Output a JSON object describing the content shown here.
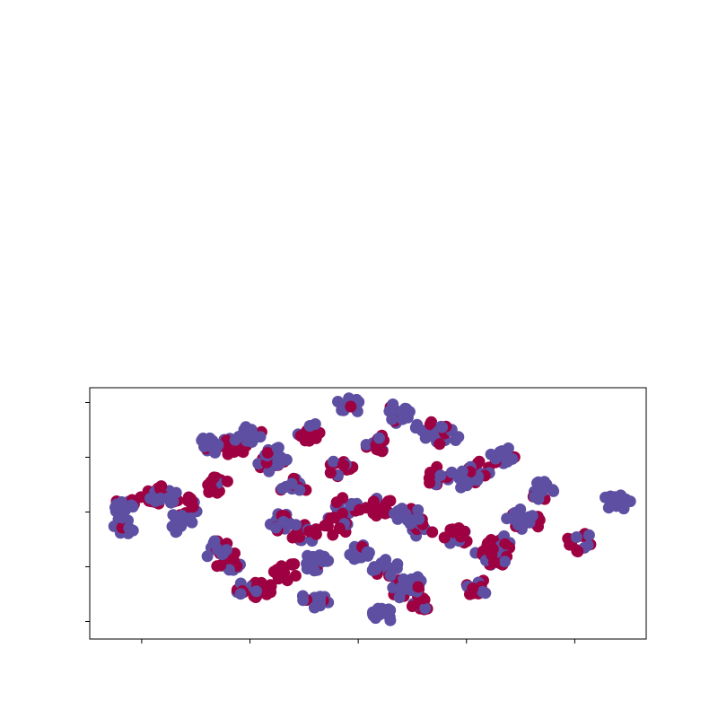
{
  "chart_data": {
    "type": "scatter",
    "title": "",
    "xlabel": "",
    "ylabel": "",
    "xlim": [
      -1.48,
      3.66
    ],
    "ylim": [
      -0.32,
      4.27
    ],
    "xticks": [
      -1,
      0,
      1,
      2,
      3
    ],
    "yticks": [
      0,
      1,
      2,
      3,
      4
    ],
    "grid": false,
    "legend": "none",
    "colors": {
      "class_a": "#9e0142",
      "class_b": "#5e4fa2"
    },
    "series": [
      {
        "values": [
          [
            -0.9,
            2.3
          ],
          [
            -0.6,
            2.1
          ],
          [
            -0.3,
            2.5
          ],
          [
            -0.15,
            3.2
          ],
          [
            0.2,
            2.9
          ],
          [
            0.5,
            1.6
          ],
          [
            0.85,
            2.8
          ],
          [
            1.2,
            2.1
          ],
          [
            1.4,
            0.6
          ],
          [
            1.6,
            1.7
          ],
          [
            2.1,
            2.75
          ],
          [
            2.3,
            1.4
          ],
          [
            2.6,
            1.8
          ],
          [
            3.05,
            1.45
          ],
          [
            0.55,
            3.45
          ],
          [
            1.15,
            3.25
          ],
          [
            -0.2,
            1.1
          ],
          [
            0.35,
            0.9
          ],
          [
            1.55,
            0.35
          ],
          [
            2.25,
            1.15
          ],
          [
            0.8,
            1.75
          ],
          [
            1.75,
            2.65
          ],
          [
            0.1,
            0.55
          ],
          [
            1.9,
            1.55
          ]
        ]
      },
      {
        "values": [
          [
            -1.15,
            2.1
          ],
          [
            -1.15,
            1.75
          ],
          [
            -0.65,
            1.8
          ],
          [
            -0.4,
            3.2
          ],
          [
            0.0,
            3.4
          ],
          [
            0.3,
            1.8
          ],
          [
            0.6,
            1.1
          ],
          [
            0.9,
            3.95
          ],
          [
            0.9,
            2.1
          ],
          [
            1.0,
            1.3
          ],
          [
            1.35,
            3.8
          ],
          [
            1.45,
            1.95
          ],
          [
            1.65,
            3.5
          ],
          [
            2.0,
            2.6
          ],
          [
            2.2,
            1.2
          ],
          [
            2.5,
            1.9
          ],
          [
            2.7,
            2.4
          ],
          [
            3.4,
            2.2
          ],
          [
            -0.3,
            1.3
          ],
          [
            0.0,
            0.6
          ],
          [
            0.6,
            0.4
          ],
          [
            1.25,
            0.1
          ],
          [
            1.5,
            0.65
          ],
          [
            2.1,
            0.6
          ],
          [
            1.8,
            3.4
          ],
          [
            2.35,
            3.0
          ],
          [
            0.25,
            3.0
          ],
          [
            -0.8,
            2.3
          ],
          [
            1.25,
            1.0
          ],
          [
            0.4,
            2.45
          ]
        ]
      }
    ]
  }
}
